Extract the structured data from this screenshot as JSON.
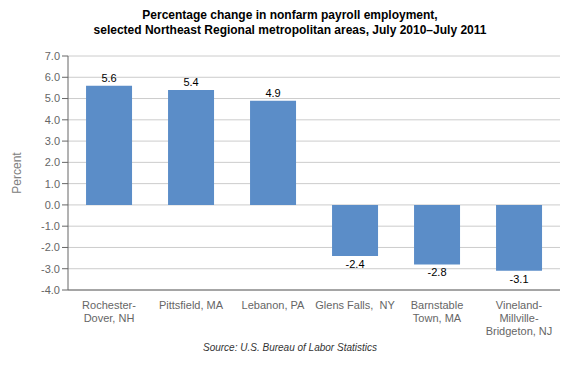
{
  "chart_data": {
    "type": "bar",
    "title": "Percentage change in nonfarm payroll employment,\nselected Northeast Regional metropolitan areas, July 2010–July 2011",
    "categories": [
      "Rochester-\nDover, NH",
      "Pittsfield, MA",
      "Lebanon, PA",
      "Glens Falls,  NY",
      "Barnstable\nTown, MA",
      "Vineland-\nMillville-\nBridgeton, NJ"
    ],
    "values": [
      5.6,
      5.4,
      4.9,
      -2.4,
      -2.8,
      -3.1
    ],
    "color": "#5B8DC8",
    "ylabel": "Percent",
    "ylim": [
      -4.0,
      7.0
    ],
    "yticks": [
      {
        "value": -4.0,
        "label": "-4.0"
      },
      {
        "value": -3.0,
        "label": "-3.0"
      },
      {
        "value": -2.0,
        "label": "-2.0"
      },
      {
        "value": -1.0,
        "label": "-1.0"
      },
      {
        "value": 0.0,
        "label": "0.0"
      },
      {
        "value": 1.0,
        "label": "1.0"
      },
      {
        "value": 2.0,
        "label": "2.0"
      },
      {
        "value": 3.0,
        "label": "3.0"
      },
      {
        "value": 4.0,
        "label": "4.0"
      },
      {
        "value": 5.0,
        "label": "5.0"
      },
      {
        "value": 6.0,
        "label": "6.0"
      },
      {
        "value": 7.0,
        "label": "7.0"
      }
    ],
    "grid": true,
    "data_labels": true,
    "annotations": [
      "Source: U.S. Bureau of Labor Statistics"
    ]
  }
}
